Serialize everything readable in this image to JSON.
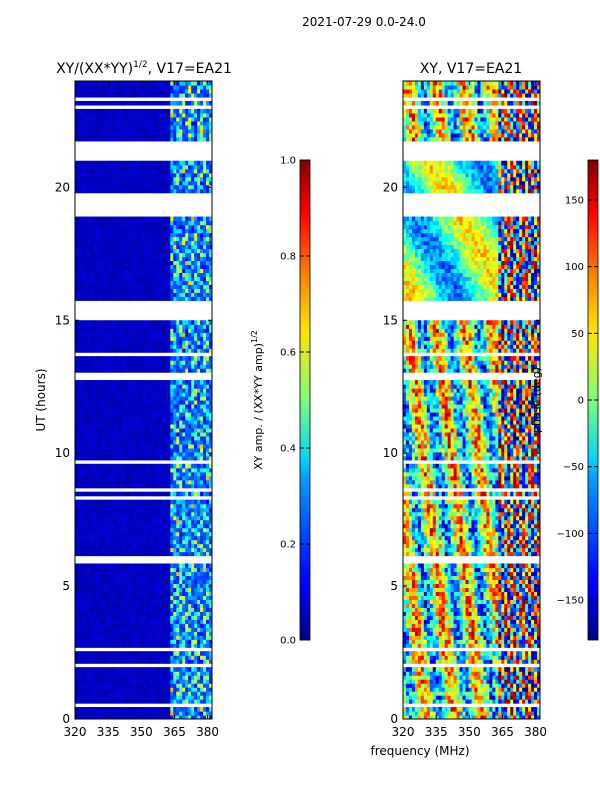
{
  "figure": {
    "suptitle": "2021-07-29 0.0-24.0",
    "xlabel": "frequency (MHz)"
  },
  "colorbars": {
    "amp": {
      "label": "XY amp. / (XX*YY amp)^1/2",
      "ticks": [
        "0.0",
        "0.2",
        "0.4",
        "0.6",
        "0.8",
        "1.0"
      ]
    },
    "phase": {
      "label": "phase (deg)",
      "ticks": [
        "150",
        "100",
        "50",
        "0",
        "−50",
        "−100",
        "−150"
      ]
    }
  },
  "chart_data": [
    {
      "type": "heatmap",
      "title": "XY/(XX*YY)^1/2, V17=EA21",
      "xlabel": "",
      "ylabel": "UT (hours)",
      "xlim": [
        320,
        382
      ],
      "ylim": [
        0,
        24
      ],
      "x_ticks": [
        "320",
        "335",
        "350",
        "365",
        "380"
      ],
      "y_ticks": [
        "0",
        "5",
        "10",
        "15",
        "20"
      ],
      "colormap": "jet",
      "clim": [
        0.0,
        1.0
      ],
      "gaps_hours": [
        [
          0.45,
          0.55
        ],
        [
          1.2,
          1.25
        ],
        [
          2.0,
          2.05
        ],
        [
          2.6,
          2.65
        ],
        [
          3.3,
          3.35
        ],
        [
          3.9,
          3.95
        ],
        [
          4.5,
          4.55
        ],
        [
          5.9,
          6.1
        ],
        [
          7.3,
          7.35
        ],
        [
          8.3,
          8.4
        ],
        [
          8.6,
          8.75
        ],
        [
          9.6,
          9.7
        ],
        [
          10.6,
          10.65
        ],
        [
          11.5,
          11.55
        ],
        [
          12.8,
          13.1
        ],
        [
          13.7,
          13.75
        ],
        [
          14.4,
          14.45
        ],
        [
          14.95,
          15.7
        ],
        [
          16.5,
          16.55
        ],
        [
          17.2,
          17.25
        ],
        [
          17.8,
          17.9
        ],
        [
          18.6,
          18.65
        ],
        [
          18.9,
          19.8
        ],
        [
          21.0,
          21.7
        ],
        [
          22.0,
          22.05
        ],
        [
          22.6,
          22.65
        ],
        [
          23.0,
          23.1
        ],
        [
          23.3,
          23.35
        ],
        [
          23.7,
          23.75
        ]
      ]
    },
    {
      "type": "heatmap",
      "title": "XY, V17=EA21",
      "xlabel": "frequency (MHz)",
      "ylabel": "",
      "xlim": [
        320,
        382
      ],
      "ylim": [
        0,
        24
      ],
      "x_ticks": [
        "320",
        "335",
        "350",
        "365",
        "380"
      ],
      "y_ticks": [
        "0",
        "5",
        "10",
        "15",
        "20"
      ],
      "colormap": "jet",
      "clim": [
        -180,
        180
      ]
    }
  ]
}
